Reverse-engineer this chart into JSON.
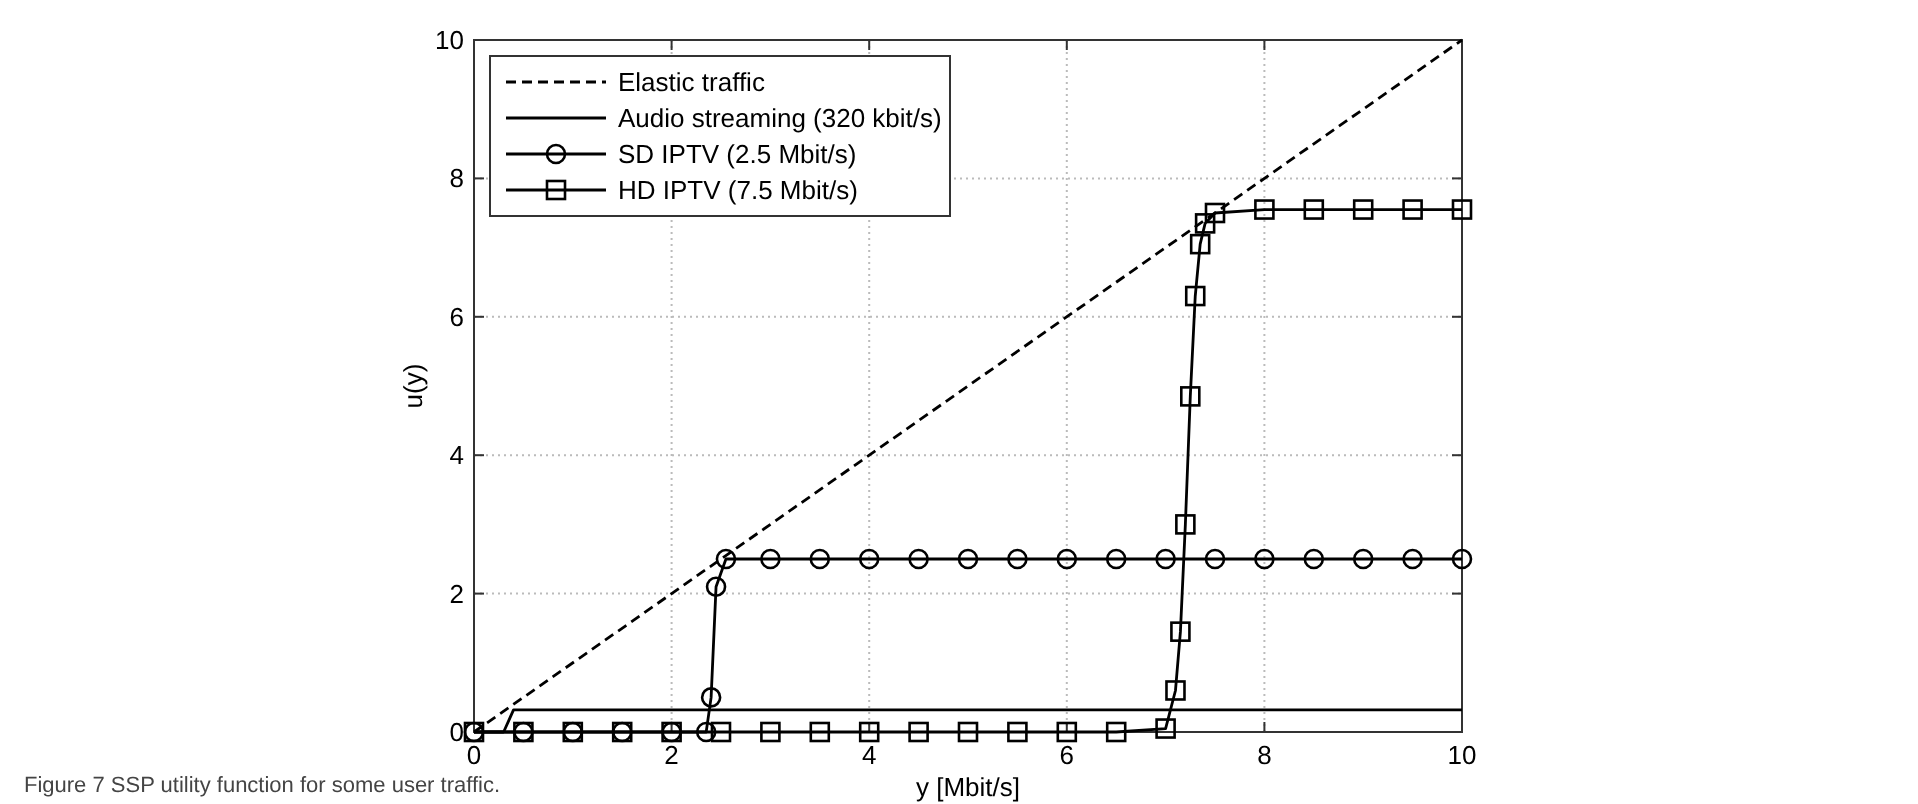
{
  "chart_data": {
    "type": "line",
    "xlabel": "y [Mbit/s]",
    "ylabel": "u(y)",
    "annotations": [
      "Figure 7 SSP utility function for some user traffic."
    ],
    "xlim": [
      0,
      10
    ],
    "ylim": [
      0,
      10
    ],
    "xticks": [
      0,
      2,
      4,
      6,
      8,
      10
    ],
    "yticks": [
      0,
      2,
      4,
      6,
      8,
      10
    ],
    "grid": true,
    "legend": "top left",
    "series": [
      {
        "name": "Elastic traffic",
        "color": "#000000",
        "line_style": "dashed",
        "x": [
          0,
          10
        ],
        "values": [
          0,
          10
        ]
      },
      {
        "name": "Audio streaming (320 kbit/s)",
        "color": "#000000",
        "line_style": "solid",
        "x": [
          0,
          0.3,
          0.4,
          10
        ],
        "values": [
          0,
          0,
          0.32,
          0.32
        ]
      },
      {
        "name": "SD IPTV (2.5 Mbit/s)",
        "color": "#000000",
        "line_style": "solid",
        "marker": "circle",
        "x": [
          0,
          0.5,
          1,
          1.5,
          2,
          2.35,
          2.4,
          2.45,
          2.55,
          3,
          3.5,
          4,
          4.5,
          5,
          5.5,
          6,
          6.5,
          7,
          7.5,
          8,
          8.5,
          9,
          9.5,
          10
        ],
        "values": [
          0,
          0,
          0,
          0,
          0,
          0,
          0.5,
          2.1,
          2.5,
          2.5,
          2.5,
          2.5,
          2.5,
          2.5,
          2.5,
          2.5,
          2.5,
          2.5,
          2.5,
          2.5,
          2.5,
          2.5,
          2.5,
          2.5
        ]
      },
      {
        "name": "HD IPTV (7.5 Mbit/s)",
        "color": "#000000",
        "line_style": "solid",
        "marker": "square",
        "x": [
          0,
          0.5,
          1,
          1.5,
          2,
          2.5,
          3,
          3.5,
          4,
          4.5,
          5,
          5.5,
          6,
          6.5,
          7,
          7.1,
          7.15,
          7.2,
          7.25,
          7.3,
          7.35,
          7.4,
          7.5,
          8,
          8.5,
          9,
          9.5,
          10
        ],
        "values": [
          0,
          0,
          0,
          0,
          0,
          0,
          0,
          0,
          0,
          0,
          0,
          0,
          0,
          0,
          0.05,
          0.6,
          1.45,
          3,
          4.85,
          6.3,
          7.05,
          7.35,
          7.5,
          7.55,
          7.55,
          7.55,
          7.55,
          7.55
        ]
      }
    ]
  }
}
